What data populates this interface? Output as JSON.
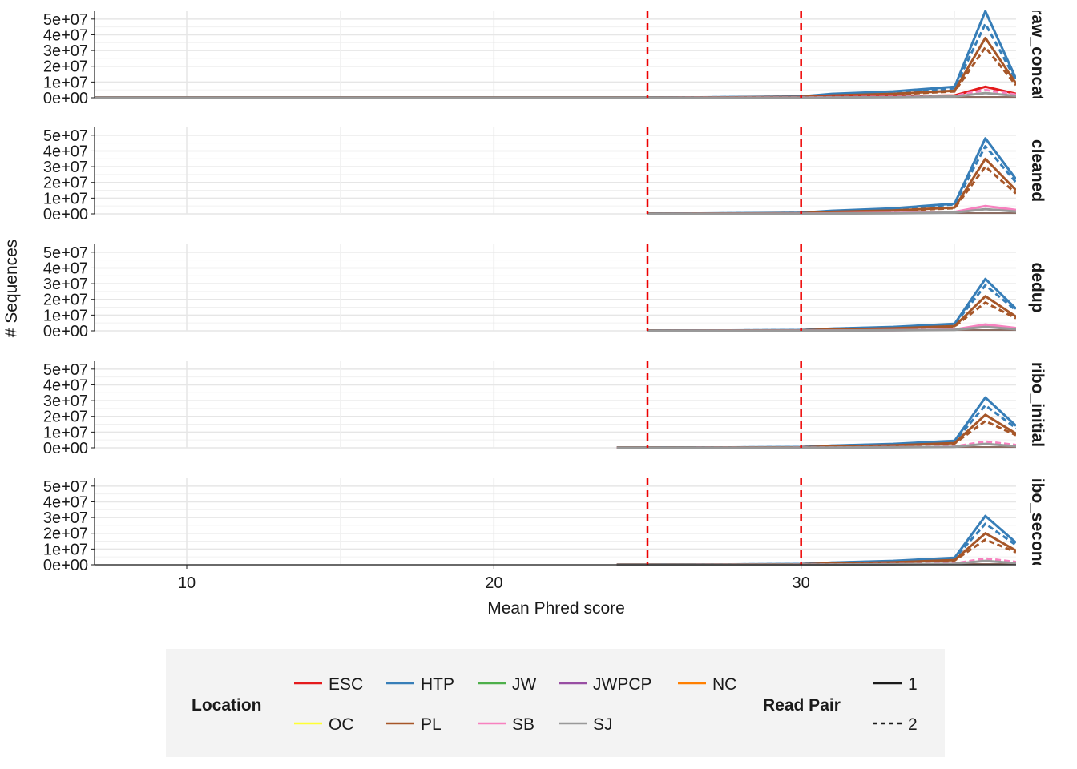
{
  "chart_data": {
    "type": "line",
    "xlabel": "Mean Phred score",
    "ylabel": "# Sequences",
    "xlim": [
      7,
      37
    ],
    "xticks": [
      10,
      20,
      30
    ],
    "ylim": [
      0,
      55000000
    ],
    "yticks": [
      0,
      10000000,
      20000000,
      30000000,
      40000000,
      50000000
    ],
    "ytick_labels": [
      "0e+00",
      "1e+07",
      "2e+07",
      "3e+07",
      "4e+07",
      "5e+07"
    ],
    "grid": true,
    "threshold_lines": [
      25,
      30
    ],
    "panels": [
      {
        "label": "raw_concat",
        "min_x": 7,
        "series": [
          {
            "location": "HTP",
            "read_pair": "1",
            "x": [
              7,
              25,
              30,
              31,
              33,
              35,
              36,
              37
            ],
            "y": [
              0,
              0,
              800000,
              2500000,
              4000000,
              7000000,
              55000000,
              12000000
            ]
          },
          {
            "location": "HTP",
            "read_pair": "2",
            "x": [
              7,
              25,
              30,
              31,
              33,
              35,
              36,
              37
            ],
            "y": [
              0,
              0,
              700000,
              2000000,
              3500000,
              6000000,
              47000000,
              11000000
            ]
          },
          {
            "location": "PL",
            "read_pair": "1",
            "x": [
              7,
              25,
              30,
              31,
              33,
              35,
              36,
              37
            ],
            "y": [
              0,
              0,
              500000,
              1500000,
              2500000,
              4500000,
              38000000,
              9000000
            ]
          },
          {
            "location": "PL",
            "read_pair": "2",
            "x": [
              7,
              25,
              30,
              31,
              33,
              35,
              36,
              37
            ],
            "y": [
              0,
              0,
              450000,
              1300000,
              2200000,
              4000000,
              32000000,
              8000000
            ]
          },
          {
            "location": "ESC",
            "read_pair": "1",
            "x": [
              7,
              25,
              30,
              33,
              35,
              36,
              37
            ],
            "y": [
              0,
              0,
              200000,
              800000,
              1500000,
              7000000,
              2500000
            ]
          },
          {
            "location": "SB",
            "read_pair": "2",
            "x": [
              7,
              25,
              30,
              33,
              35,
              36,
              37
            ],
            "y": [
              0,
              0,
              150000,
              600000,
              1200000,
              5000000,
              2000000
            ]
          },
          {
            "location": "SJ",
            "read_pair": "1",
            "x": [
              7,
              25,
              30,
              33,
              35,
              36,
              37
            ],
            "y": [
              0,
              0,
              100000,
              400000,
              800000,
              3000000,
              1200000
            ]
          }
        ]
      },
      {
        "label": "cleaned",
        "min_x": 25,
        "series": [
          {
            "location": "HTP",
            "read_pair": "1",
            "x": [
              25,
              30,
              31,
              33,
              35,
              36,
              37
            ],
            "y": [
              0,
              700000,
              2000000,
              3500000,
              6500000,
              48000000,
              22000000
            ]
          },
          {
            "location": "HTP",
            "read_pair": "2",
            "x": [
              25,
              30,
              31,
              33,
              35,
              36,
              37
            ],
            "y": [
              0,
              600000,
              1800000,
              3000000,
              6000000,
              43000000,
              20000000
            ]
          },
          {
            "location": "PL",
            "read_pair": "1",
            "x": [
              25,
              30,
              31,
              33,
              35,
              36,
              37
            ],
            "y": [
              0,
              400000,
              1300000,
              2200000,
              4000000,
              35000000,
              15000000
            ]
          },
          {
            "location": "PL",
            "read_pair": "2",
            "x": [
              25,
              30,
              31,
              33,
              35,
              36,
              37
            ],
            "y": [
              0,
              350000,
              1100000,
              2000000,
              3600000,
              30000000,
              13000000
            ]
          },
          {
            "location": "SB",
            "read_pair": "1",
            "x": [
              25,
              30,
              33,
              35,
              36,
              37
            ],
            "y": [
              0,
              150000,
              600000,
              1200000,
              5000000,
              2500000
            ]
          },
          {
            "location": "SJ",
            "read_pair": "1",
            "x": [
              25,
              30,
              33,
              35,
              36,
              37
            ],
            "y": [
              0,
              100000,
              400000,
              800000,
              3000000,
              1500000
            ]
          }
        ]
      },
      {
        "label": "dedup",
        "min_x": 25,
        "series": [
          {
            "location": "HTP",
            "read_pair": "1",
            "x": [
              25,
              30,
              31,
              33,
              35,
              36,
              37
            ],
            "y": [
              0,
              500000,
              1400000,
              2500000,
              4500000,
              33000000,
              14000000
            ]
          },
          {
            "location": "HTP",
            "read_pair": "2",
            "x": [
              25,
              30,
              31,
              33,
              35,
              36,
              37
            ],
            "y": [
              0,
              450000,
              1300000,
              2300000,
              4200000,
              29000000,
              13000000
            ]
          },
          {
            "location": "PL",
            "read_pair": "1",
            "x": [
              25,
              30,
              31,
              33,
              35,
              36,
              37
            ],
            "y": [
              0,
              300000,
              900000,
              1600000,
              3000000,
              22000000,
              9000000
            ]
          },
          {
            "location": "PL",
            "read_pair": "2",
            "x": [
              25,
              30,
              31,
              33,
              35,
              36,
              37
            ],
            "y": [
              0,
              280000,
              800000,
              1500000,
              2800000,
              18000000,
              8000000
            ]
          },
          {
            "location": "SB",
            "read_pair": "1",
            "x": [
              25,
              30,
              33,
              35,
              36,
              37
            ],
            "y": [
              0,
              100000,
              400000,
              800000,
              4000000,
              1800000
            ]
          },
          {
            "location": "SJ",
            "read_pair": "1",
            "x": [
              25,
              30,
              33,
              35,
              36,
              37
            ],
            "y": [
              0,
              80000,
              300000,
              600000,
              2500000,
              1000000
            ]
          }
        ]
      },
      {
        "label": "ribo_initial",
        "min_x": 24,
        "series": [
          {
            "location": "HTP",
            "read_pair": "1",
            "x": [
              24,
              25,
              30,
              31,
              33,
              35,
              36,
              37
            ],
            "y": [
              0,
              0,
              500000,
              1400000,
              2500000,
              4500000,
              32000000,
              14000000
            ]
          },
          {
            "location": "HTP",
            "read_pair": "2",
            "x": [
              24,
              25,
              30,
              31,
              33,
              35,
              36,
              37
            ],
            "y": [
              0,
              0,
              450000,
              1300000,
              2300000,
              4200000,
              27000000,
              12500000
            ]
          },
          {
            "location": "PL",
            "read_pair": "1",
            "x": [
              24,
              25,
              30,
              31,
              33,
              35,
              36,
              37
            ],
            "y": [
              0,
              0,
              300000,
              900000,
              1600000,
              3000000,
              21000000,
              9000000
            ]
          },
          {
            "location": "PL",
            "read_pair": "2",
            "x": [
              24,
              25,
              30,
              31,
              33,
              35,
              36,
              37
            ],
            "y": [
              0,
              0,
              280000,
              800000,
              1500000,
              2800000,
              17000000,
              8000000
            ]
          },
          {
            "location": "SB",
            "read_pair": "2",
            "x": [
              24,
              25,
              30,
              33,
              35,
              36,
              37
            ],
            "y": [
              0,
              0,
              100000,
              400000,
              800000,
              4000000,
              1800000
            ]
          },
          {
            "location": "SJ",
            "read_pair": "1",
            "x": [
              24,
              25,
              30,
              33,
              35,
              36,
              37
            ],
            "y": [
              0,
              0,
              80000,
              300000,
              600000,
              2500000,
              1000000
            ]
          }
        ]
      },
      {
        "label": "ribo_second",
        "min_x": 24,
        "series": [
          {
            "location": "HTP",
            "read_pair": "1",
            "x": [
              24,
              25,
              30,
              31,
              33,
              35,
              36,
              37
            ],
            "y": [
              0,
              0,
              500000,
              1400000,
              2500000,
              4500000,
              31000000,
              14000000
            ]
          },
          {
            "location": "HTP",
            "read_pair": "2",
            "x": [
              24,
              25,
              30,
              31,
              33,
              35,
              36,
              37
            ],
            "y": [
              0,
              0,
              450000,
              1300000,
              2300000,
              4200000,
              26000000,
              12500000
            ]
          },
          {
            "location": "PL",
            "read_pair": "1",
            "x": [
              24,
              25,
              30,
              31,
              33,
              35,
              36,
              37
            ],
            "y": [
              0,
              0,
              300000,
              900000,
              1600000,
              3000000,
              20000000,
              9000000
            ]
          },
          {
            "location": "PL",
            "read_pair": "2",
            "x": [
              24,
              25,
              30,
              31,
              33,
              35,
              36,
              37
            ],
            "y": [
              0,
              0,
              280000,
              800000,
              1500000,
              2800000,
              16000000,
              8000000
            ]
          },
          {
            "location": "SB",
            "read_pair": "2",
            "x": [
              24,
              25,
              30,
              33,
              35,
              36,
              37
            ],
            "y": [
              0,
              0,
              100000,
              400000,
              800000,
              4000000,
              1800000
            ]
          },
          {
            "location": "SJ",
            "read_pair": "1",
            "x": [
              24,
              25,
              30,
              33,
              35,
              36,
              37
            ],
            "y": [
              0,
              0,
              80000,
              300000,
              600000,
              2500000,
              1000000
            ]
          }
        ]
      }
    ],
    "legend": {
      "location_title": "Location",
      "location_items": [
        {
          "label": "ESC",
          "color": "#e41a1c"
        },
        {
          "label": "HTP",
          "color": "#377eb8"
        },
        {
          "label": "JW",
          "color": "#4daf4a"
        },
        {
          "label": "JWPCP",
          "color": "#984ea3"
        },
        {
          "label": "NC",
          "color": "#ff7f00"
        },
        {
          "label": "OC",
          "color": "#ffff33"
        },
        {
          "label": "PL",
          "color": "#a65628"
        },
        {
          "label": "SB",
          "color": "#f781bf"
        },
        {
          "label": "SJ",
          "color": "#999999"
        }
      ],
      "readpair_title": "Read Pair",
      "readpair_items": [
        {
          "label": "1",
          "linetype": "solid"
        },
        {
          "label": "2",
          "linetype": "dashed"
        }
      ],
      "placement": "bottom"
    }
  },
  "colors": {
    "threshold": "#ee0000",
    "grid": "#e6e6e6",
    "legend_background": "#f3f3f3"
  }
}
